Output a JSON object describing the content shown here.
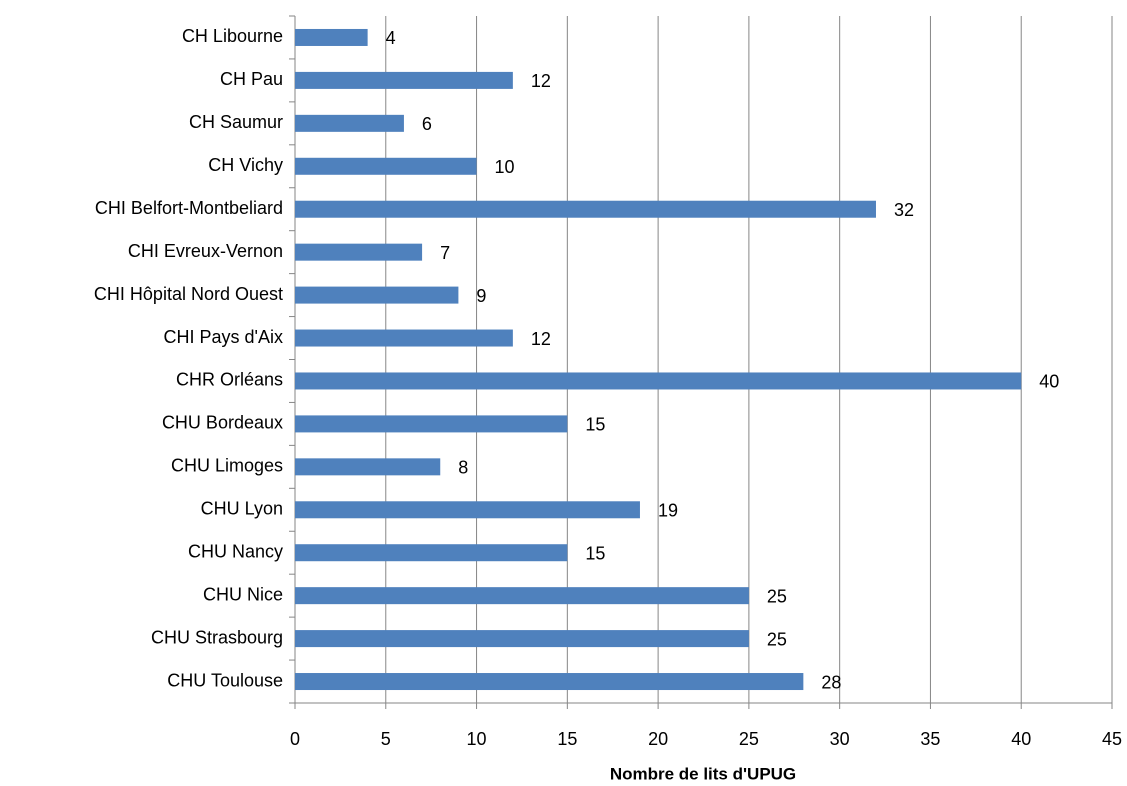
{
  "chart_data": {
    "type": "bar",
    "orientation": "horizontal",
    "x_label": "Nombre de lits d'UPUG",
    "categories": [
      "CH Libourne",
      "CH Pau",
      "CH Saumur",
      "CH Vichy",
      "CHI Belfort-Montbeliard",
      "CHI Evreux-Vernon",
      "CHI Hôpital Nord Ouest",
      "CHI Pays d'Aix",
      "CHR Orléans",
      "CHU Bordeaux",
      "CHU Limoges",
      "CHU Lyon",
      "CHU Nancy",
      "CHU Nice",
      "CHU Strasbourg",
      "CHU Toulouse"
    ],
    "values": [
      4,
      12,
      6,
      10,
      32,
      7,
      9,
      12,
      40,
      15,
      8,
      19,
      15,
      25,
      25,
      28
    ],
    "color": "#4f81bd",
    "xlim": [
      0,
      45
    ],
    "xticks": [
      0,
      5,
      10,
      15,
      20,
      25,
      30,
      35,
      40,
      45
    ],
    "grid": true
  }
}
